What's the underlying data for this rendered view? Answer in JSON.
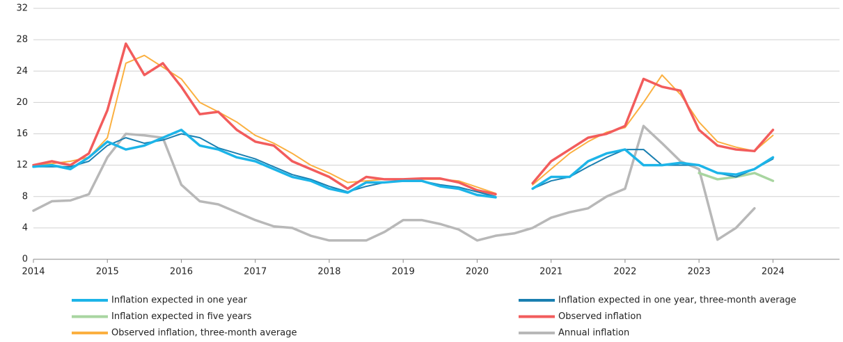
{
  "chart_data": {
    "type": "line",
    "x": [
      2014,
      2014.25,
      2014.5,
      2014.75,
      2015,
      2015.25,
      2015.5,
      2015.75,
      2016,
      2016.25,
      2016.5,
      2016.75,
      2017,
      2017.25,
      2017.5,
      2017.75,
      2018,
      2018.25,
      2018.5,
      2018.75,
      2019,
      2019.25,
      2019.5,
      2019.75,
      2020,
      2020.25,
      2020.5,
      2020.75,
      2021,
      2021.25,
      2021.5,
      2021.75,
      2022,
      2022.25,
      2022.5,
      2022.75,
      2023,
      2023.25,
      2023.5,
      2023.75,
      2024
    ],
    "series": [
      {
        "name": "Inflation expected in one year",
        "color": "#1cb4e8",
        "width": 3.5,
        "values": [
          11.8,
          12,
          11.5,
          13,
          15,
          14,
          14.5,
          15.5,
          16.5,
          14.5,
          14,
          13,
          12.5,
          11.5,
          10.5,
          10,
          9,
          8.5,
          9.8,
          9.8,
          10,
          10,
          9.3,
          9,
          8.2,
          7.9,
          null,
          9,
          10.5,
          10.5,
          12.5,
          13.5,
          14,
          12,
          12,
          12.3,
          12,
          11,
          10.8,
          11.5,
          13
        ]
      },
      {
        "name": "Inflation expected in one year, three-month average",
        "color": "#1a7fb0",
        "width": 2,
        "values": [
          11.8,
          11.8,
          11.8,
          12.5,
          14.5,
          15.5,
          14.8,
          15.2,
          16,
          15.5,
          14.2,
          13.5,
          12.8,
          11.8,
          10.8,
          10.2,
          9.3,
          8.6,
          9.3,
          9.8,
          10,
          10,
          9.5,
          9.2,
          8.6,
          8,
          null,
          9,
          10,
          10.5,
          11.8,
          13,
          14,
          14,
          12,
          12,
          12,
          11,
          10.5,
          11.5,
          12.8
        ]
      },
      {
        "name": "Inflation expected in five years",
        "color": "#a8d5a0",
        "width": 3.5,
        "values": [
          null,
          null,
          null,
          null,
          null,
          null,
          null,
          null,
          null,
          null,
          null,
          null,
          null,
          null,
          null,
          null,
          null,
          null,
          null,
          null,
          null,
          null,
          null,
          null,
          null,
          null,
          null,
          null,
          null,
          null,
          null,
          null,
          null,
          null,
          null,
          null,
          11,
          10.2,
          10.5,
          11,
          10
        ]
      },
      {
        "name": "Observed inflation",
        "color": "#f25c5c",
        "width": 3.5,
        "values": [
          12,
          12.5,
          12,
          13.5,
          19,
          27.5,
          23.5,
          25,
          22,
          18.5,
          18.8,
          16.5,
          15,
          14.5,
          12.5,
          11.5,
          10.5,
          9,
          10.5,
          10.2,
          10.2,
          10.3,
          10.3,
          9.8,
          8.8,
          8.3,
          null,
          9.7,
          12.5,
          14,
          15.5,
          16,
          17,
          23,
          22,
          21.5,
          16.5,
          14.5,
          14,
          13.8,
          16.5
        ]
      },
      {
        "name": "Observed inflation, three-month average",
        "color": "#fbb040",
        "width": 2,
        "values": [
          12,
          12.2,
          12.5,
          13,
          15.5,
          25,
          26,
          24.5,
          23,
          20,
          18.8,
          17.5,
          15.8,
          14.8,
          13.5,
          12,
          11,
          9.8,
          10,
          10.2,
          10.2,
          10.2,
          10.2,
          10,
          9.2,
          8.4,
          null,
          9.5,
          11.5,
          13.5,
          15,
          16.2,
          16.8,
          20,
          23.5,
          21,
          17.5,
          15,
          14.3,
          13.8,
          15.8
        ]
      },
      {
        "name": "Annual inflation",
        "color": "#b8b8b8",
        "width": 3.5,
        "values": [
          6.2,
          7.4,
          7.5,
          8.3,
          13,
          16,
          15.8,
          15.5,
          9.5,
          7.4,
          7,
          6,
          5,
          4.2,
          4,
          3,
          2.4,
          2.4,
          2.4,
          3.5,
          5,
          5,
          4.5,
          3.8,
          2.4,
          3,
          3.3,
          4,
          5.3,
          6,
          6.5,
          8,
          9,
          17,
          14.8,
          12.5,
          11.5,
          2.5,
          4,
          6.5,
          null
        ]
      }
    ],
    "xlim": [
      2014,
      2024.9
    ],
    "xticks": [
      2014,
      2015,
      2016,
      2017,
      2018,
      2019,
      2020,
      2021,
      2022,
      2023,
      2024
    ],
    "ylim": [
      0,
      32
    ],
    "yticks": [
      0,
      4,
      8,
      12,
      16,
      20,
      24,
      28,
      32
    ],
    "grid": true,
    "legend": "bottom"
  }
}
